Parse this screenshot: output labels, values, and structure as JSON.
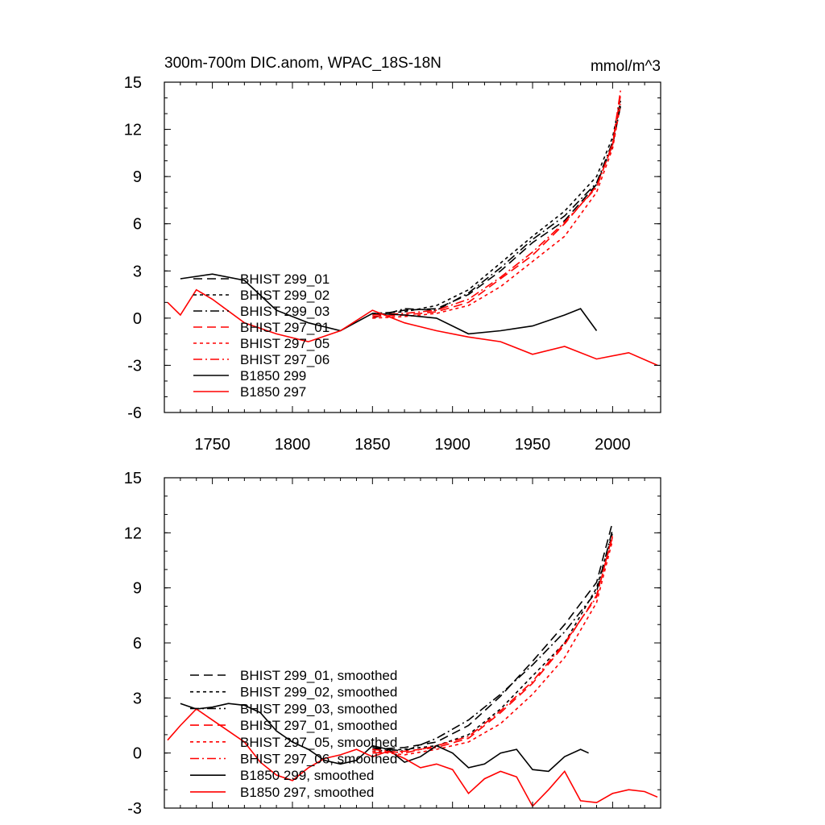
{
  "chart_data": [
    {
      "type": "line",
      "title": "300m-700m DIC.anom, WPAC_18S-18N",
      "units": "mmol/m^3",
      "xlim": [
        1720,
        2030
      ],
      "ylim": [
        -6,
        15
      ],
      "xticks": [
        1750,
        1800,
        1850,
        1900,
        1950,
        2000
      ],
      "yticks": [
        -6,
        -3,
        0,
        3,
        6,
        9,
        12,
        15
      ],
      "grid": false,
      "legend_position": "left-center",
      "series": [
        {
          "name": "BHIST 299_01",
          "color": "#000000",
          "dash": "long-dash",
          "x": [
            1850,
            1870,
            1890,
            1910,
            1930,
            1950,
            1970,
            1990,
            2000,
            2005
          ],
          "y": [
            0.2,
            0.5,
            0.6,
            1.5,
            3.0,
            4.8,
            6.2,
            8.5,
            11.0,
            13.5
          ]
        },
        {
          "name": "BHIST 299_02",
          "color": "#000000",
          "dash": "short-dash",
          "x": [
            1850,
            1870,
            1890,
            1910,
            1930,
            1950,
            1970,
            1990,
            2000,
            2005
          ],
          "y": [
            0.3,
            0.4,
            0.8,
            1.8,
            3.5,
            5.2,
            6.8,
            9.0,
            11.5,
            14.0
          ]
        },
        {
          "name": "BHIST 299_03",
          "color": "#000000",
          "dash": "dash-dot",
          "x": [
            1850,
            1870,
            1890,
            1910,
            1930,
            1950,
            1970,
            1990,
            2000,
            2005
          ],
          "y": [
            0.0,
            0.6,
            0.5,
            1.6,
            3.2,
            5.0,
            6.5,
            8.6,
            11.2,
            13.8
          ]
        },
        {
          "name": "BHIST 297_01",
          "color": "#ff0000",
          "dash": "long-dash",
          "x": [
            1850,
            1870,
            1890,
            1910,
            1930,
            1950,
            1970,
            1990,
            2000,
            2005
          ],
          "y": [
            0.1,
            0.2,
            0.4,
            1.0,
            2.5,
            4.0,
            6.0,
            8.4,
            11.0,
            14.2
          ]
        },
        {
          "name": "BHIST 297_05",
          "color": "#ff0000",
          "dash": "short-dash",
          "x": [
            1850,
            1870,
            1890,
            1910,
            1930,
            1950,
            1970,
            1990,
            2000,
            2005
          ],
          "y": [
            0.0,
            0.1,
            0.3,
            0.8,
            2.0,
            3.6,
            5.2,
            8.0,
            10.8,
            13.6
          ]
        },
        {
          "name": "BHIST 297_06",
          "color": "#ff0000",
          "dash": "dash-dot",
          "x": [
            1850,
            1870,
            1890,
            1910,
            1930,
            1950,
            1970,
            1990,
            2000,
            2005
          ],
          "y": [
            0.2,
            0.3,
            0.5,
            1.2,
            2.6,
            4.2,
            6.1,
            8.3,
            11.1,
            14.5
          ]
        },
        {
          "name": "B1850 299",
          "color": "#000000",
          "dash": "solid",
          "x": [
            1730,
            1750,
            1770,
            1790,
            1810,
            1830,
            1850,
            1870,
            1890,
            1910,
            1930,
            1950,
            1970,
            1980,
            1990
          ],
          "y": [
            2.5,
            2.8,
            2.4,
            0.5,
            -0.3,
            -0.8,
            0.3,
            0.2,
            0.0,
            -1.0,
            -0.8,
            -0.5,
            0.2,
            0.6,
            -0.8
          ]
        },
        {
          "name": "B1850 297",
          "color": "#ff0000",
          "dash": "solid",
          "x": [
            1722,
            1730,
            1740,
            1750,
            1770,
            1790,
            1810,
            1830,
            1850,
            1870,
            1890,
            1910,
            1930,
            1950,
            1970,
            1990,
            2010,
            2028
          ],
          "y": [
            1.0,
            0.2,
            1.8,
            1.2,
            -0.3,
            -1.0,
            -1.5,
            -0.8,
            0.5,
            -0.3,
            -0.8,
            -1.2,
            -1.5,
            -2.3,
            -1.8,
            -2.6,
            -2.2,
            -3.0
          ]
        }
      ]
    },
    {
      "type": "line",
      "xlim": [
        1720,
        2030
      ],
      "ylim": [
        -3,
        15
      ],
      "yticks": [
        -3,
        0,
        3,
        6,
        9,
        12,
        15
      ],
      "grid": false,
      "legend_position": "bottom-left",
      "series": [
        {
          "name": "BHIST 299_01, smoothed",
          "color": "#000000",
          "dash": "long-dash",
          "x": [
            1850,
            1870,
            1890,
            1910,
            1930,
            1950,
            1970,
            1990,
            2000
          ],
          "y": [
            0.2,
            0.3,
            0.6,
            1.5,
            3.1,
            5.0,
            7.0,
            9.3,
            12.6
          ]
        },
        {
          "name": "BHIST 299_02, smoothed",
          "color": "#000000",
          "dash": "short-dash",
          "x": [
            1850,
            1870,
            1890,
            1910,
            1930,
            1950,
            1970,
            1990,
            2000
          ],
          "y": [
            0.1,
            0.2,
            0.4,
            1.0,
            2.4,
            4.2,
            6.0,
            9.0,
            12.0
          ]
        },
        {
          "name": "BHIST 299_03, smoothed",
          "color": "#000000",
          "dash": "dash-dot",
          "x": [
            1850,
            1870,
            1890,
            1910,
            1930,
            1950,
            1970,
            1990,
            2000
          ],
          "y": [
            0.3,
            0.1,
            0.8,
            1.8,
            3.2,
            4.8,
            6.6,
            8.8,
            12.2
          ]
        },
        {
          "name": "BHIST 297_01, smoothed",
          "color": "#ff0000",
          "dash": "long-dash",
          "x": [
            1850,
            1870,
            1890,
            1910,
            1930,
            1950,
            1970,
            1990,
            2000
          ],
          "y": [
            0.0,
            0.1,
            0.3,
            0.8,
            2.2,
            3.8,
            5.9,
            8.6,
            11.8
          ]
        },
        {
          "name": "BHIST 297_05, smoothed",
          "color": "#ff0000",
          "dash": "short-dash",
          "x": [
            1850,
            1870,
            1890,
            1910,
            1930,
            1950,
            1970,
            1990,
            2000
          ],
          "y": [
            0.1,
            -0.1,
            0.2,
            0.6,
            1.6,
            3.2,
            5.2,
            8.2,
            11.6
          ]
        },
        {
          "name": "BHIST 297_06, smoothed",
          "color": "#ff0000",
          "dash": "dash-dot",
          "x": [
            1850,
            1870,
            1890,
            1910,
            1930,
            1950,
            1970,
            1990,
            2000
          ],
          "y": [
            0.2,
            0.0,
            0.4,
            0.9,
            2.3,
            3.9,
            6.0,
            8.5,
            11.9
          ]
        },
        {
          "name": "B1850 299, smoothed",
          "color": "#000000",
          "dash": "solid",
          "x": [
            1730,
            1740,
            1750,
            1760,
            1770,
            1780,
            1790,
            1800,
            1810,
            1820,
            1830,
            1840,
            1850,
            1860,
            1870,
            1880,
            1890,
            1900,
            1910,
            1920,
            1930,
            1940,
            1950,
            1960,
            1970,
            1980,
            1985
          ],
          "y": [
            2.7,
            2.4,
            2.5,
            2.7,
            2.6,
            2.2,
            1.2,
            0.6,
            0.2,
            -0.4,
            -0.6,
            -0.4,
            0.4,
            0.2,
            -0.5,
            -0.2,
            0.4,
            0.0,
            -0.8,
            -0.6,
            0.0,
            0.2,
            -0.9,
            -1.0,
            -0.2,
            0.2,
            0.0
          ]
        },
        {
          "name": "B1850 297, smoothed",
          "color": "#ff0000",
          "dash": "solid",
          "x": [
            1722,
            1730,
            1740,
            1750,
            1760,
            1770,
            1780,
            1790,
            1800,
            1810,
            1820,
            1830,
            1840,
            1850,
            1860,
            1870,
            1880,
            1890,
            1900,
            1910,
            1920,
            1930,
            1940,
            1950,
            1960,
            1970,
            1980,
            1990,
            2000,
            2010,
            2020,
            2028
          ],
          "y": [
            0.7,
            1.5,
            2.4,
            1.8,
            1.2,
            0.6,
            -0.5,
            -1.2,
            -1.5,
            -0.8,
            -0.3,
            -0.1,
            0.2,
            -0.2,
            0.1,
            -0.3,
            -0.8,
            -0.6,
            -0.9,
            -2.2,
            -1.4,
            -1.0,
            -1.3,
            -2.9,
            -2.0,
            -1.0,
            -2.6,
            -2.7,
            -2.2,
            -2.0,
            -2.1,
            -2.4
          ]
        }
      ]
    }
  ]
}
